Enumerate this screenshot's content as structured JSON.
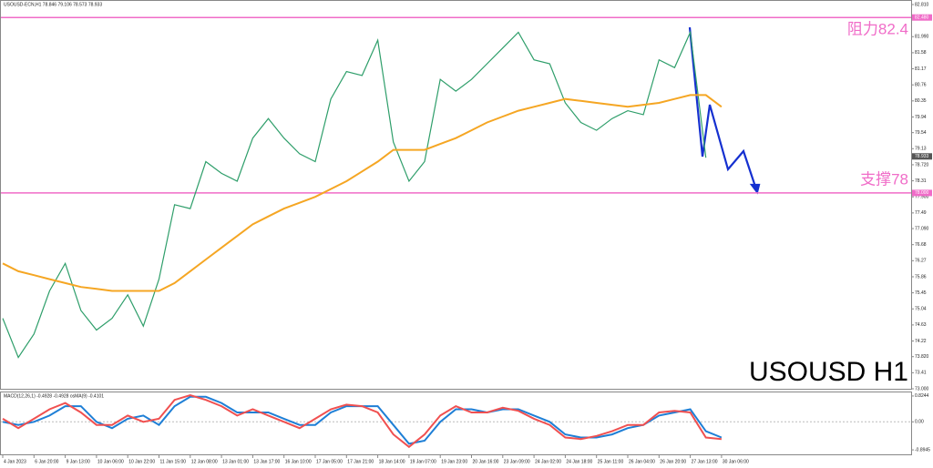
{
  "chart_data": [
    {
      "type": "line",
      "title": "USOUSD-ECN,H1  78.846 79.106 78.573 78.933",
      "series": [
        {
          "color": "#2e9e6a",
          "values": [
            74.8,
            73.8,
            74.4,
            75.5,
            76.2,
            75.0,
            74.5,
            74.8,
            75.4,
            74.6,
            75.8,
            77.7,
            77.6,
            78.8,
            78.5,
            78.3,
            79.4,
            79.9,
            79.4,
            79.0,
            78.8,
            80.4,
            81.1,
            81.0,
            81.9,
            79.3,
            78.3,
            78.8,
            80.9,
            80.6,
            80.9,
            81.3,
            81.7,
            82.1,
            81.4,
            81.3,
            80.3,
            79.8,
            79.6,
            79.9,
            80.1,
            80.0,
            81.4,
            81.2,
            82.1,
            78.9,
            null
          ]
        },
        {
          "color": "#f5a623",
          "values": [
            76.2,
            76.0,
            75.9,
            75.8,
            75.7,
            75.6,
            75.55,
            75.5,
            75.5,
            75.5,
            75.5,
            75.7,
            76.0,
            76.3,
            76.6,
            76.9,
            77.2,
            77.4,
            77.6,
            77.75,
            77.9,
            78.1,
            78.3,
            78.55,
            78.8,
            79.1,
            79.1,
            79.1,
            79.25,
            79.4,
            79.6,
            79.8,
            79.95,
            80.1,
            80.2,
            80.3,
            80.4,
            80.35,
            80.3,
            80.25,
            80.2,
            80.25,
            80.3,
            80.4,
            80.5,
            80.5,
            80.2
          ]
        }
      ],
      "ylim": [
        73.0,
        82.81
      ],
      "yticks": [
        {
          "value": 82.81,
          "label": "82.810"
        },
        {
          "value": 81.99,
          "label": "81.990"
        },
        81.58,
        81.17,
        80.76,
        80.35,
        79.94,
        79.54,
        79.13,
        {
          "value": 78.72,
          "label": "78.720"
        },
        78.31,
        {
          "value": 77.9,
          "label": "77.900"
        },
        77.49,
        {
          "value": 77.09,
          "label": "77.090"
        },
        76.68,
        76.27,
        75.86,
        75.45,
        75.04,
        74.63,
        74.22,
        {
          "value": 73.82,
          "label": "73.820"
        },
        73.41,
        {
          "value": 73.0,
          "label": "73.000"
        }
      ],
      "hlines": [
        {
          "value": 82.48,
          "label": "82.480"
        },
        {
          "value": 78.0,
          "label": "78.000"
        }
      ],
      "last_price": 78.933,
      "annotations": [
        "阻力82.4",
        "支撑78",
        "USOUSD H1"
      ]
    },
    {
      "type": "line",
      "title": "MACD(12,26,1) -0.4928 -0.4928 osMA(9) -0.4101",
      "categories": [
        "4 Jan 2023",
        null,
        "6 Jan 20:00",
        null,
        "9 Jan 13:00",
        null,
        "10 Jan 06:00",
        null,
        "10 Jan 22:00",
        null,
        "11 Jan 15:00",
        null,
        "12 Jan 08:00",
        null,
        "13 Jan 01:00",
        null,
        "13 Jan 17:00",
        null,
        "16 Jan 10:00",
        null,
        "17 Jan 05:00",
        null,
        "17 Jan 21:00",
        null,
        "18 Jan 14:00",
        null,
        "19 Jan 07:00",
        null,
        "19 Jan 23:00",
        null,
        "20 Jan 16:00",
        null,
        "23 Jan 09:00",
        null,
        "24 Jan 02:00",
        null,
        "24 Jan 18:00",
        null,
        "25 Jan 11:00",
        null,
        "26 Jan 04:00",
        null,
        "26 Jan 20:00",
        null,
        "27 Jan 13:00",
        null,
        "30 Jan 06:00"
      ],
      "series": [
        {
          "color": "#1e7fd6",
          "values": [
            0.0,
            -0.1,
            0.0,
            0.2,
            0.5,
            0.5,
            0.0,
            -0.2,
            0.1,
            0.2,
            -0.1,
            0.5,
            0.8,
            0.8,
            0.6,
            0.3,
            0.3,
            0.3,
            0.1,
            -0.1,
            -0.1,
            0.3,
            0.5,
            0.5,
            0.5,
            -0.1,
            -0.7,
            -0.6,
            0.0,
            0.4,
            0.4,
            0.3,
            0.4,
            0.4,
            0.2,
            0.0,
            -0.4,
            -0.5,
            -0.5,
            -0.4,
            -0.2,
            -0.1,
            0.2,
            0.3,
            0.4,
            -0.3,
            -0.5
          ]
        },
        {
          "color": "#f05050",
          "values": [
            0.1,
            -0.2,
            0.1,
            0.4,
            0.6,
            0.3,
            -0.1,
            -0.1,
            0.2,
            0.0,
            0.1,
            0.7,
            0.85,
            0.7,
            0.5,
            0.2,
            0.4,
            0.2,
            0.0,
            -0.2,
            0.1,
            0.4,
            0.55,
            0.5,
            0.3,
            -0.4,
            -0.8,
            -0.4,
            0.2,
            0.5,
            0.3,
            0.3,
            0.45,
            0.35,
            0.1,
            -0.1,
            -0.5,
            -0.55,
            -0.45,
            -0.3,
            -0.1,
            -0.1,
            0.3,
            0.35,
            0.3,
            -0.5,
            -0.55
          ]
        }
      ],
      "ylim": [
        -0.95,
        0.88
      ],
      "yticks": [
        0.8244,
        {
          "value": 0,
          "label": "0.00"
        },
        -0.8945
      ]
    }
  ]
}
